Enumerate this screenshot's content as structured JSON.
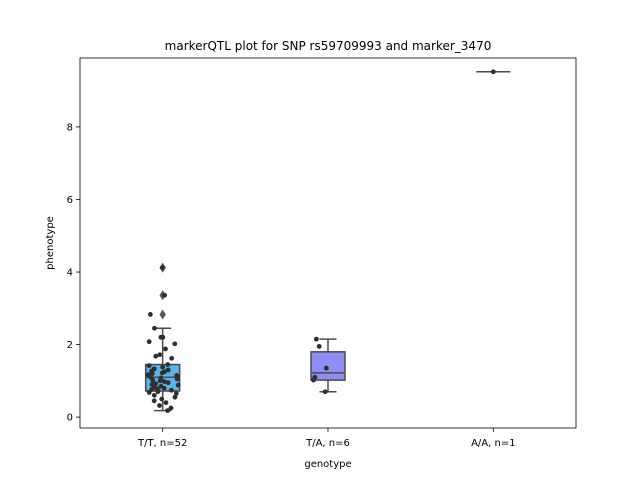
{
  "chart_data": {
    "type": "box",
    "title": "markerQTL plot for SNP rs59709993 and marker_3470",
    "xlabel": "genotype",
    "ylabel": "phenotype",
    "ylim": [
      -0.3,
      9.9
    ],
    "yticks": [
      "0",
      "2",
      "4",
      "6",
      "8"
    ],
    "grid": false,
    "legend": "none",
    "categories": [
      "T/T, n=52",
      "T/A, n=6",
      "A/A, n=1"
    ],
    "colors": {
      "box_fill": [
        "#5ab4e8",
        "#8e8ef5",
        "#f0f0f0"
      ],
      "box_edge": "#4a4a4a",
      "point": "#2e2e2e",
      "outlier": "#555555"
    },
    "boxes": [
      {
        "category": "T/T, n=52",
        "whisker_low": 0.18,
        "q1": 0.72,
        "median": 1.1,
        "q3": 1.45,
        "whisker_high": 2.45,
        "outliers": [
          4.12,
          3.36,
          2.83
        ]
      },
      {
        "category": "T/A, n=6",
        "whisker_low": 0.7,
        "q1": 1.02,
        "median": 1.22,
        "q3": 1.8,
        "whisker_high": 2.15,
        "outliers": []
      },
      {
        "category": "A/A, n=1",
        "whisker_low": 9.52,
        "q1": 9.52,
        "median": 9.52,
        "q3": 9.52,
        "whisker_high": 9.52,
        "outliers": []
      }
    ],
    "points": [
      {
        "category": "T/T, n=52",
        "values": [
          4.12,
          3.36,
          2.83,
          2.45,
          2.2,
          2.2,
          2.08,
          2.02,
          1.88,
          1.72,
          1.68,
          1.62,
          1.45,
          1.42,
          1.38,
          1.33,
          1.3,
          1.27,
          1.25,
          1.22,
          1.2,
          1.17,
          1.15,
          1.12,
          1.1,
          1.08,
          1.05,
          1.02,
          1.0,
          0.98,
          0.95,
          0.92,
          0.9,
          0.88,
          0.85,
          0.82,
          0.8,
          0.78,
          0.76,
          0.74,
          0.72,
          0.7,
          0.68,
          0.65,
          0.6,
          0.55,
          0.5,
          0.45,
          0.4,
          0.32,
          0.25,
          0.18
        ]
      },
      {
        "category": "T/A, n=6",
        "values": [
          2.15,
          1.95,
          1.35,
          1.1,
          1.02,
          0.7
        ]
      },
      {
        "category": "A/A, n=1",
        "values": [
          9.52
        ]
      }
    ]
  }
}
